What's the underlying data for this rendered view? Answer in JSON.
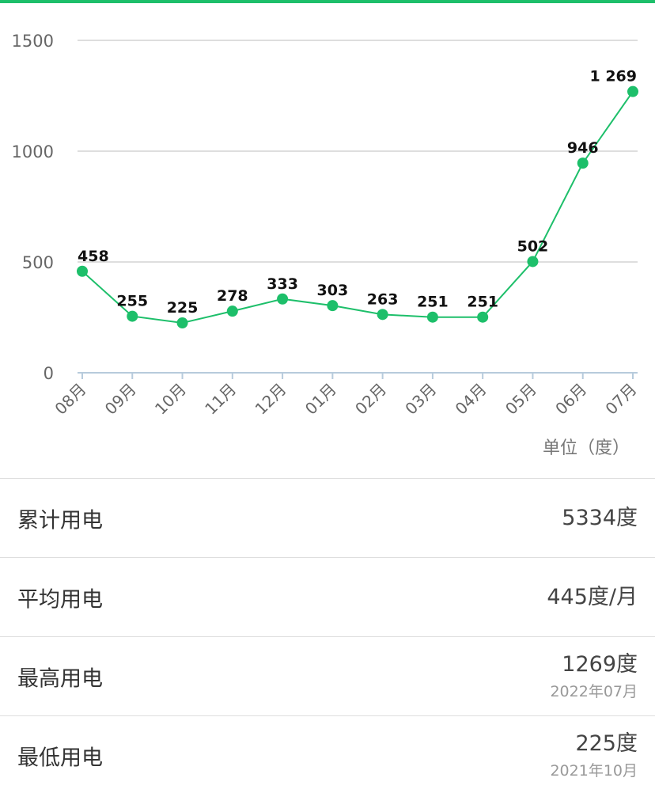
{
  "colors": {
    "accent": "#1dbf6a",
    "grid": "#d4d4d4",
    "axis": "#b7cbdc",
    "tick_text": "#666666",
    "label_text": "#111111"
  },
  "chart_data": {
    "type": "line",
    "categories": [
      "08月",
      "09月",
      "10月",
      "11月",
      "12月",
      "01月",
      "02月",
      "03月",
      "04月",
      "05月",
      "06月",
      "07月"
    ],
    "values": [
      458,
      255,
      225,
      278,
      333,
      303,
      263,
      251,
      251,
      502,
      946,
      1269
    ],
    "data_labels": [
      "458",
      "255",
      "225",
      "278",
      "333",
      "303",
      "263",
      "251",
      "251",
      "502",
      "946",
      "1 269"
    ],
    "yticks": [
      "0",
      "500",
      "1000",
      "1500"
    ],
    "ylim": [
      0,
      1500
    ],
    "grid": true,
    "unit_label": "单位（度）"
  },
  "stats": [
    {
      "label": "累计用电",
      "value": "5334度"
    },
    {
      "label": "平均用电",
      "value": "445度/月"
    },
    {
      "label": "最高用电",
      "value": "1269度",
      "date": "2022年07月"
    },
    {
      "label": "最低用电",
      "value": "225度",
      "date": "2021年10月"
    }
  ]
}
